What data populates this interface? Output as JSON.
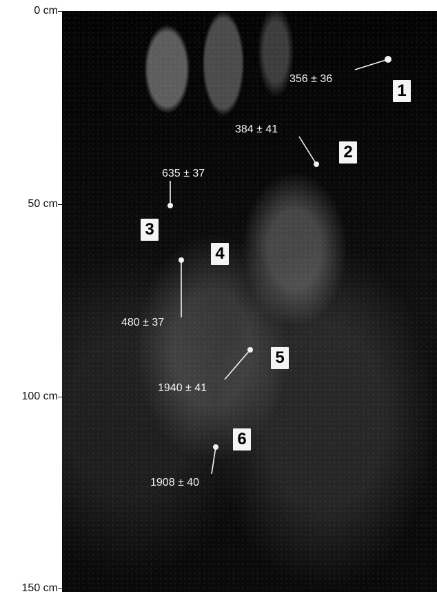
{
  "axis": {
    "labels": [
      "0 cm",
      "50 cm",
      "100 cm",
      "150 cm"
    ]
  },
  "samples": [
    {
      "number": "1",
      "value": "356 ± 36"
    },
    {
      "number": "2",
      "value": "384 ± 41"
    },
    {
      "number": "3",
      "value": "635 ± 37"
    },
    {
      "number": "4",
      "value": "480 ± 37"
    },
    {
      "number": "5",
      "value": "1940 ± 41"
    },
    {
      "number": "6",
      "value": "1908 ± 40"
    }
  ]
}
